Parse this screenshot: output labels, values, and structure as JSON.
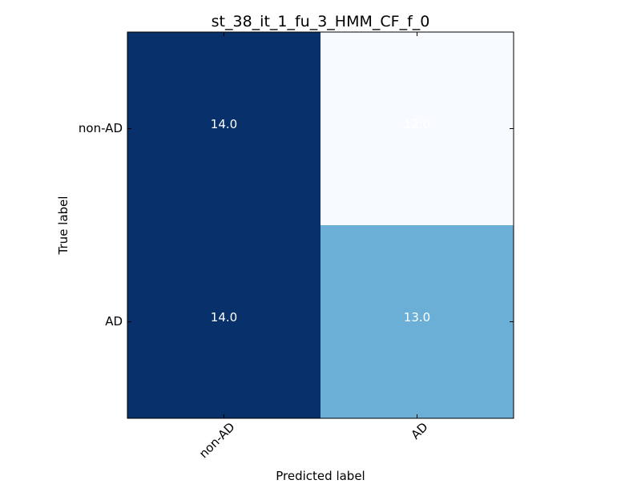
{
  "chart_data": {
    "type": "heatmap",
    "title": "st_38_it_1_fu_3_HMM_CF_f_0",
    "xlabel": "Predicted label",
    "ylabel": "True label",
    "x_categories": [
      "non-AD",
      "AD"
    ],
    "y_categories": [
      "non-AD",
      "AD"
    ],
    "values": [
      [
        14.0,
        12.0
      ],
      [
        14.0,
        13.0
      ]
    ],
    "value_labels": [
      [
        "14.0",
        "12.0"
      ],
      [
        "14.0",
        "13.0"
      ]
    ],
    "colormap": "Blues",
    "cell_colors": [
      [
        "#08306b",
        "#f7fbff"
      ],
      [
        "#08306b",
        "#6baed6"
      ]
    ],
    "label_color": "#ffffff",
    "grid": false,
    "legend": "none"
  }
}
